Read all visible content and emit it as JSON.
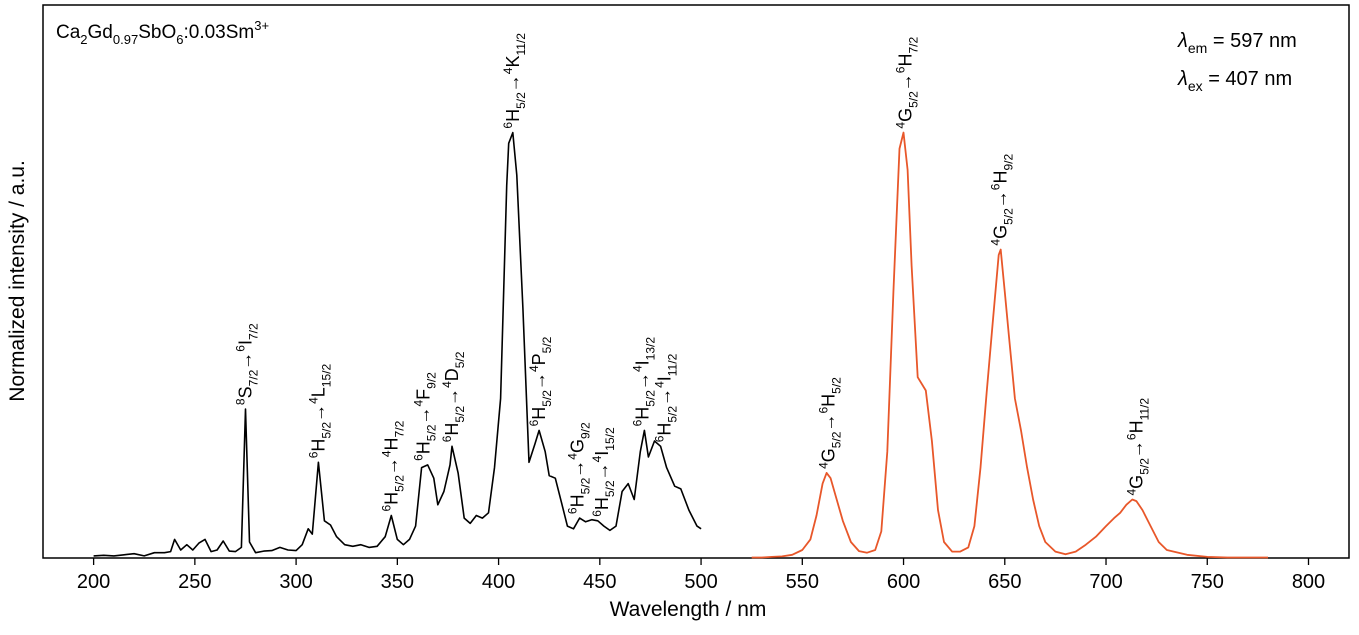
{
  "chart_data": {
    "type": "line",
    "sample_label": {
      "prefix": "Ca",
      "s1": "2",
      "mid1": "Gd",
      "s2": "0.97",
      "mid2": "SbO",
      "s3": "6",
      "mid3": ":0.03Sm",
      "sup": "3+"
    },
    "xlabel": "Wavelength / nm",
    "ylabel": "Normalized intensity / a.u.",
    "xlim": [
      175,
      820
    ],
    "ylim": [
      0,
      1.04
    ],
    "x_ticks": [
      200,
      250,
      300,
      350,
      400,
      450,
      500,
      550,
      600,
      650,
      700,
      750,
      800
    ],
    "tick_labels": [
      "200",
      "250",
      "300",
      "350",
      "400",
      "450",
      "500",
      "550",
      "600",
      "650",
      "700",
      "750",
      "800"
    ],
    "annotations_top_right": [
      {
        "sym": "λ",
        "sub": "em",
        "text": " = 597 nm"
      },
      {
        "sym": "λ",
        "sub": "ex",
        "text": " = 407 nm"
      }
    ],
    "series": [
      {
        "color": "#000000",
        "points": [
          [
            200,
            0.004
          ],
          [
            205,
            0.005
          ],
          [
            210,
            0.004
          ],
          [
            215,
            0.006
          ],
          [
            220,
            0.008
          ],
          [
            225,
            0.004
          ],
          [
            230,
            0.01
          ],
          [
            235,
            0.01
          ],
          [
            238,
            0.012
          ],
          [
            240,
            0.035
          ],
          [
            243,
            0.015
          ],
          [
            246,
            0.025
          ],
          [
            249,
            0.015
          ],
          [
            252,
            0.028
          ],
          [
            255,
            0.035
          ],
          [
            258,
            0.012
          ],
          [
            261,
            0.015
          ],
          [
            264,
            0.032
          ],
          [
            267,
            0.013
          ],
          [
            270,
            0.012
          ],
          [
            273,
            0.02
          ],
          [
            275,
            0.28
          ],
          [
            277,
            0.03
          ],
          [
            280,
            0.01
          ],
          [
            284,
            0.013
          ],
          [
            288,
            0.014
          ],
          [
            292,
            0.02
          ],
          [
            296,
            0.015
          ],
          [
            300,
            0.014
          ],
          [
            303,
            0.025
          ],
          [
            306,
            0.055
          ],
          [
            308,
            0.045
          ],
          [
            311,
            0.18
          ],
          [
            314,
            0.07
          ],
          [
            317,
            0.062
          ],
          [
            320,
            0.04
          ],
          [
            324,
            0.025
          ],
          [
            328,
            0.022
          ],
          [
            332,
            0.025
          ],
          [
            336,
            0.02
          ],
          [
            340,
            0.022
          ],
          [
            344,
            0.04
          ],
          [
            347,
            0.08
          ],
          [
            350,
            0.035
          ],
          [
            353,
            0.025
          ],
          [
            356,
            0.035
          ],
          [
            359,
            0.06
          ],
          [
            362,
            0.17
          ],
          [
            365,
            0.175
          ],
          [
            368,
            0.15
          ],
          [
            370,
            0.1
          ],
          [
            373,
            0.125
          ],
          [
            376,
            0.175
          ],
          [
            377,
            0.21
          ],
          [
            380,
            0.16
          ],
          [
            383,
            0.075
          ],
          [
            386,
            0.065
          ],
          [
            389,
            0.08
          ],
          [
            392,
            0.075
          ],
          [
            395,
            0.085
          ],
          [
            398,
            0.17
          ],
          [
            401,
            0.3
          ],
          [
            404,
            0.7
          ],
          [
            405,
            0.78
          ],
          [
            407,
            0.8
          ],
          [
            409,
            0.72
          ],
          [
            412,
            0.47
          ],
          [
            415,
            0.18
          ],
          [
            418,
            0.215
          ],
          [
            420,
            0.24
          ],
          [
            423,
            0.2
          ],
          [
            425,
            0.155
          ],
          [
            428,
            0.15
          ],
          [
            431,
            0.105
          ],
          [
            434,
            0.06
          ],
          [
            437,
            0.055
          ],
          [
            440,
            0.075
          ],
          [
            443,
            0.068
          ],
          [
            446,
            0.072
          ],
          [
            449,
            0.07
          ],
          [
            452,
            0.06
          ],
          [
            455,
            0.052
          ],
          [
            458,
            0.06
          ],
          [
            461,
            0.125
          ],
          [
            464,
            0.14
          ],
          [
            467,
            0.11
          ],
          [
            470,
            0.2
          ],
          [
            472,
            0.24
          ],
          [
            474,
            0.19
          ],
          [
            477,
            0.22
          ],
          [
            480,
            0.21
          ],
          [
            483,
            0.17
          ],
          [
            487,
            0.135
          ],
          [
            490,
            0.13
          ],
          [
            494,
            0.09
          ],
          [
            498,
            0.06
          ],
          [
            500,
            0.055
          ]
        ]
      },
      {
        "color": "#e8572a",
        "points": [
          [
            525,
            0.001
          ],
          [
            530,
            0.001
          ],
          [
            535,
            0.002
          ],
          [
            540,
            0.003
          ],
          [
            545,
            0.006
          ],
          [
            550,
            0.015
          ],
          [
            554,
            0.035
          ],
          [
            557,
            0.08
          ],
          [
            560,
            0.14
          ],
          [
            562,
            0.16
          ],
          [
            564,
            0.15
          ],
          [
            567,
            0.11
          ],
          [
            570,
            0.07
          ],
          [
            574,
            0.03
          ],
          [
            578,
            0.013
          ],
          [
            582,
            0.01
          ],
          [
            586,
            0.015
          ],
          [
            589,
            0.05
          ],
          [
            592,
            0.2
          ],
          [
            595,
            0.5
          ],
          [
            598,
            0.77
          ],
          [
            600,
            0.8
          ],
          [
            602,
            0.73
          ],
          [
            604,
            0.55
          ],
          [
            607,
            0.34
          ],
          [
            611,
            0.315
          ],
          [
            614,
            0.22
          ],
          [
            617,
            0.09
          ],
          [
            620,
            0.03
          ],
          [
            624,
            0.012
          ],
          [
            628,
            0.012
          ],
          [
            632,
            0.02
          ],
          [
            635,
            0.06
          ],
          [
            638,
            0.17
          ],
          [
            641,
            0.31
          ],
          [
            644,
            0.44
          ],
          [
            647,
            0.57
          ],
          [
            648,
            0.58
          ],
          [
            650,
            0.5
          ],
          [
            652,
            0.42
          ],
          [
            655,
            0.3
          ],
          [
            658,
            0.24
          ],
          [
            661,
            0.17
          ],
          [
            664,
            0.11
          ],
          [
            667,
            0.06
          ],
          [
            670,
            0.03
          ],
          [
            675,
            0.012
          ],
          [
            680,
            0.007
          ],
          [
            685,
            0.012
          ],
          [
            690,
            0.025
          ],
          [
            695,
            0.04
          ],
          [
            700,
            0.06
          ],
          [
            704,
            0.075
          ],
          [
            707,
            0.085
          ],
          [
            710,
            0.1
          ],
          [
            713,
            0.11
          ],
          [
            715,
            0.107
          ],
          [
            718,
            0.09
          ],
          [
            722,
            0.06
          ],
          [
            726,
            0.03
          ],
          [
            730,
            0.015
          ],
          [
            740,
            0.006
          ],
          [
            750,
            0.002
          ],
          [
            760,
            0.001
          ],
          [
            770,
            0.001
          ],
          [
            780,
            0.001
          ]
        ]
      }
    ],
    "peak_labels": [
      {
        "x": 275,
        "y": 0.28,
        "parts": [
          [
            "sup",
            "8"
          ],
          [
            "n",
            "S"
          ],
          [
            "sub",
            "7/2"
          ],
          [
            "n",
            "→"
          ],
          [
            "sup",
            "6"
          ],
          [
            "n",
            "I"
          ],
          [
            "sub",
            "7/2"
          ]
        ]
      },
      {
        "x": 311,
        "y": 0.18,
        "parts": [
          [
            "sup",
            "6"
          ],
          [
            "n",
            "H"
          ],
          [
            "sub",
            "5/2"
          ],
          [
            "n",
            "→"
          ],
          [
            "sup",
            "4"
          ],
          [
            "n",
            "L"
          ],
          [
            "sub",
            "15/2"
          ]
        ]
      },
      {
        "x": 347,
        "y": 0.08,
        "parts": [
          [
            "sup",
            "6"
          ],
          [
            "n",
            "H"
          ],
          [
            "sub",
            "5/2"
          ],
          [
            "n",
            "→"
          ],
          [
            "sup",
            "4"
          ],
          [
            "n",
            "H"
          ],
          [
            "sub",
            "7/2"
          ]
        ]
      },
      {
        "x": 363,
        "y": 0.175,
        "parts": [
          [
            "sup",
            "6"
          ],
          [
            "n",
            "H"
          ],
          [
            "sub",
            "5/2"
          ],
          [
            "n",
            "→"
          ],
          [
            "sup",
            "4"
          ],
          [
            "n",
            "F"
          ],
          [
            "sub",
            "9/2"
          ]
        ]
      },
      {
        "x": 377,
        "y": 0.21,
        "parts": [
          [
            "sup",
            "6"
          ],
          [
            "n",
            "H"
          ],
          [
            "sub",
            "5/2"
          ],
          [
            "n",
            "→"
          ],
          [
            "sup",
            "4"
          ],
          [
            "n",
            "D"
          ],
          [
            "sub",
            "5/2"
          ]
        ]
      },
      {
        "x": 407,
        "y": 0.8,
        "parts": [
          [
            "sup",
            "6"
          ],
          [
            "n",
            "H"
          ],
          [
            "sub",
            "5/2"
          ],
          [
            "n",
            "→"
          ],
          [
            "sup",
            "4"
          ],
          [
            "n",
            "K"
          ],
          [
            "sub",
            "11/2"
          ]
        ]
      },
      {
        "x": 420,
        "y": 0.24,
        "parts": [
          [
            "sup",
            "6"
          ],
          [
            "n",
            "H"
          ],
          [
            "sub",
            "5/2"
          ],
          [
            "n",
            "→"
          ],
          [
            "sup",
            "4"
          ],
          [
            "n",
            "P"
          ],
          [
            "sub",
            "5/2"
          ]
        ]
      },
      {
        "x": 439,
        "y": 0.075,
        "parts": [
          [
            "sup",
            "6"
          ],
          [
            "n",
            "H"
          ],
          [
            "sub",
            "5/2"
          ],
          [
            "n",
            "→"
          ],
          [
            "sup",
            "4"
          ],
          [
            "n",
            "G"
          ],
          [
            "sub",
            "9/2"
          ]
        ]
      },
      {
        "x": 451,
        "y": 0.07,
        "parts": [
          [
            "sup",
            "6"
          ],
          [
            "n",
            "H"
          ],
          [
            "sub",
            "5/2"
          ],
          [
            "n",
            "→"
          ],
          [
            "sup",
            "4"
          ],
          [
            "n",
            "I"
          ],
          [
            "sub",
            "15/2"
          ]
        ]
      },
      {
        "x": 471,
        "y": 0.24,
        "parts": [
          [
            "sup",
            "6"
          ],
          [
            "n",
            "H"
          ],
          [
            "sub",
            "5/2"
          ],
          [
            "n",
            "→"
          ],
          [
            "sup",
            "4"
          ],
          [
            "n",
            "I"
          ],
          [
            "sub",
            "13/2"
          ]
        ]
      },
      {
        "x": 482,
        "y": 0.21,
        "parts": [
          [
            "sup",
            "6"
          ],
          [
            "n",
            "H"
          ],
          [
            "sub",
            "5/2"
          ],
          [
            "n",
            "→"
          ],
          [
            "sup",
            "4"
          ],
          [
            "n",
            "I"
          ],
          [
            "sub",
            "11/2"
          ]
        ]
      },
      {
        "x": 563,
        "y": 0.16,
        "parts": [
          [
            "sup",
            "4"
          ],
          [
            "n",
            "G"
          ],
          [
            "sub",
            "5/2"
          ],
          [
            "n",
            "→"
          ],
          [
            "sup",
            "6"
          ],
          [
            "n",
            "H"
          ],
          [
            "sub",
            "5/2"
          ]
        ]
      },
      {
        "x": 601,
        "y": 0.8,
        "parts": [
          [
            "sup",
            "4"
          ],
          [
            "n",
            "G"
          ],
          [
            "sub",
            "5/2"
          ],
          [
            "n",
            "→"
          ],
          [
            "sup",
            "6"
          ],
          [
            "n",
            "H"
          ],
          [
            "sub",
            "7/2"
          ]
        ]
      },
      {
        "x": 648,
        "y": 0.58,
        "parts": [
          [
            "sup",
            "4"
          ],
          [
            "n",
            "G"
          ],
          [
            "sub",
            "5/2"
          ],
          [
            "n",
            "→"
          ],
          [
            "sup",
            "6"
          ],
          [
            "n",
            "H"
          ],
          [
            "sub",
            "9/2"
          ]
        ]
      },
      {
        "x": 715,
        "y": 0.11,
        "parts": [
          [
            "sup",
            "4"
          ],
          [
            "n",
            "G"
          ],
          [
            "sub",
            "5/2"
          ],
          [
            "n",
            "→"
          ],
          [
            "sup",
            "6"
          ],
          [
            "n",
            "H"
          ],
          [
            "sub",
            "11/2"
          ]
        ]
      }
    ]
  }
}
